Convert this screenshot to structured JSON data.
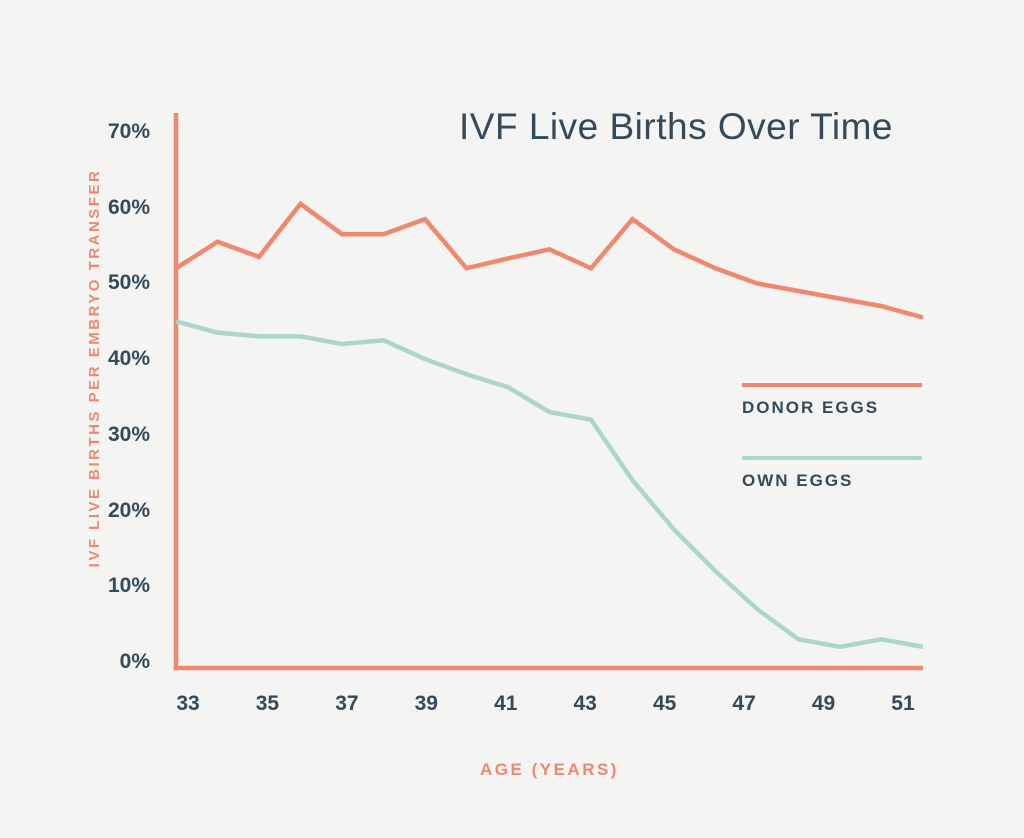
{
  "colors": {
    "background": "#F4F4F2",
    "accent": "#F0876F",
    "mint": "#ABD7C7",
    "text": "#334A5C"
  },
  "chart_data": {
    "type": "line",
    "title": "IVF Live Births Over Time",
    "xlabel": "AGE (YEARS)",
    "ylabel": "IVF LIVE BIRTHS PER EMBRYO TRANSFER",
    "x": [
      33,
      34,
      35,
      36,
      37,
      38,
      39,
      40,
      41,
      42,
      43,
      44,
      45,
      46,
      47,
      48,
      49,
      50,
      51
    ],
    "xlim": [
      33,
      51
    ],
    "ylim": [
      0,
      70
    ],
    "x_tick_labels": [
      "33",
      "35",
      "37",
      "39",
      "41",
      "43",
      "45",
      "47",
      "49",
      "51"
    ],
    "y_tick_labels": [
      "70%",
      "60%",
      "50%",
      "40%",
      "30%",
      "20%",
      "10%",
      "0%"
    ],
    "grid": false,
    "legend_position": "right-middle",
    "series": [
      {
        "name": "DONOR EGGS",
        "color": "#F0876F",
        "values": [
          52,
          55.5,
          53.5,
          60.5,
          56.5,
          56.5,
          58.5,
          52,
          53.3,
          54.5,
          52,
          58.5,
          54.5,
          52,
          50,
          49,
          48,
          47,
          45.5
        ]
      },
      {
        "name": "OWN EGGS",
        "color": "#ABD7C7",
        "values": [
          45,
          43.5,
          43,
          43,
          42,
          42.5,
          40,
          38,
          36.3,
          33,
          32,
          24,
          17.5,
          12,
          7,
          3,
          2,
          3,
          2
        ]
      }
    ]
  }
}
